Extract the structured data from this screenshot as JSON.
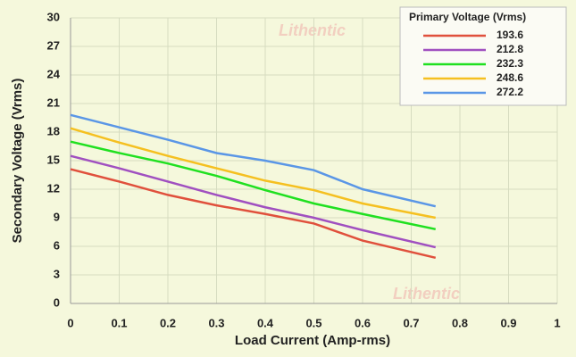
{
  "chart_data": {
    "type": "line",
    "xlabel": "Load Current (Amp-rms)",
    "ylabel": "Secondary Voltage (Vrms)",
    "legend_title": "Primary Voltage (Vrms)",
    "legend_position": "upper right",
    "watermark": "Lithentic",
    "grid": true,
    "x": [
      0,
      0.1,
      0.2,
      0.3,
      0.4,
      0.5,
      0.6,
      0.75
    ],
    "series": [
      {
        "name": "193.6",
        "color": "#e0503c",
        "values": [
          14.1,
          12.8,
          11.4,
          10.3,
          9.4,
          8.4,
          6.6,
          4.8
        ]
      },
      {
        "name": "212.8",
        "color": "#a050c0",
        "values": [
          15.5,
          14.2,
          12.8,
          11.4,
          10.1,
          9.0,
          7.7,
          5.9
        ]
      },
      {
        "name": "232.3",
        "color": "#20e020",
        "values": [
          17.0,
          15.8,
          14.7,
          13.4,
          11.9,
          10.5,
          9.4,
          7.8
        ]
      },
      {
        "name": "248.6",
        "color": "#f5c020",
        "values": [
          18.4,
          16.9,
          15.5,
          14.2,
          12.9,
          11.9,
          10.5,
          9.0
        ]
      },
      {
        "name": "272.2",
        "color": "#5a96e6",
        "values": [
          19.8,
          18.5,
          17.2,
          15.8,
          15.0,
          14.0,
          12.0,
          10.2
        ]
      }
    ],
    "xlim": [
      0,
      1
    ],
    "xticks": [
      0,
      0.1,
      0.2,
      0.3,
      0.4,
      0.5,
      0.6,
      0.7,
      0.8,
      0.9,
      1
    ],
    "ylim": [
      0,
      30
    ],
    "yticks": [
      0,
      3,
      6,
      9,
      12,
      15,
      18,
      21,
      24,
      27,
      30
    ]
  }
}
